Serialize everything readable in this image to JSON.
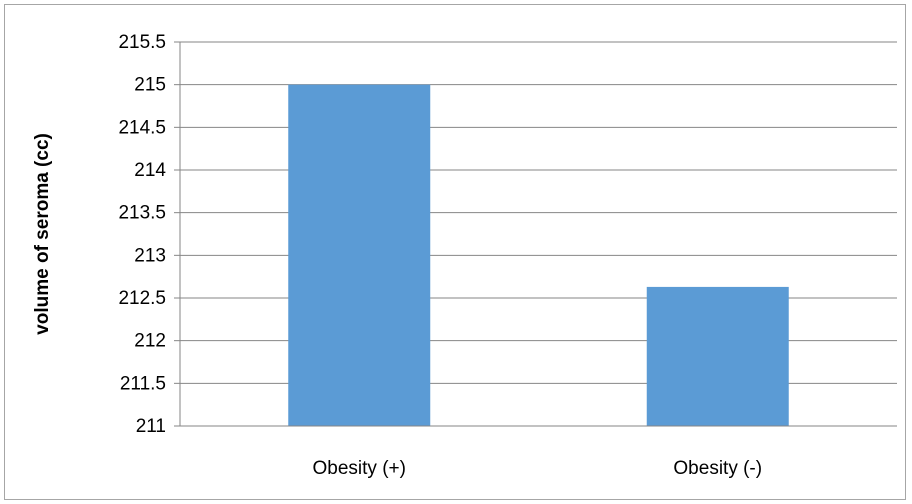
{
  "chart_data": {
    "type": "bar",
    "title": "",
    "xlabel": "",
    "ylabel": "volume of seroma (cc)",
    "categories": [
      "Obesity (+)",
      "Obesity (-)"
    ],
    "values": [
      215.0,
      212.63
    ],
    "ylim": [
      211,
      215.5
    ],
    "yticks": [
      "211",
      "211.5",
      "212",
      "212.5",
      "213",
      "213.5",
      "214",
      "214.5",
      "215",
      "215.5"
    ],
    "grid": true,
    "legend": "none",
    "colors": {
      "bar": "#5b9bd5",
      "grid": "#868686",
      "axis": "#868686",
      "border": "#a6a6a6"
    }
  }
}
